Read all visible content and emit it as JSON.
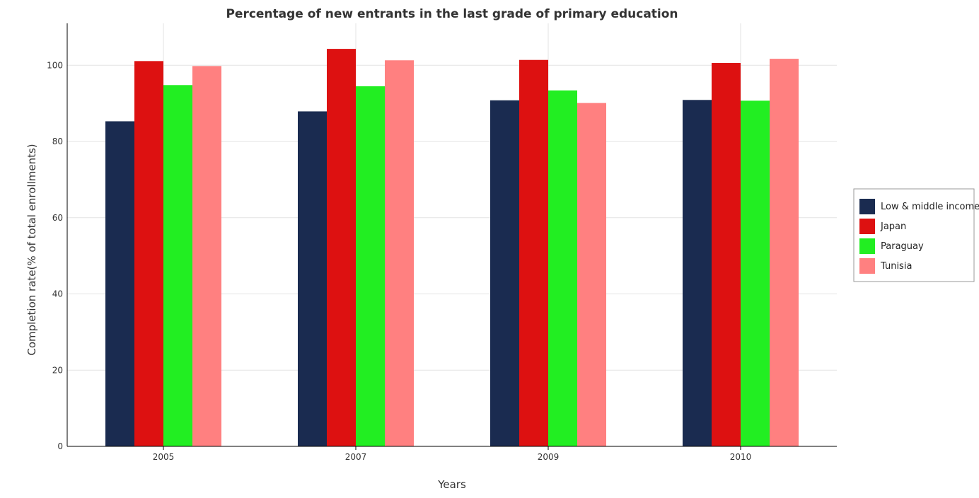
{
  "chart_data": {
    "type": "bar",
    "title": "Percentage of new entrants in the last grade of primary education",
    "xlabel": "Years",
    "ylabel": "Completion rate(% of total enrollments)",
    "categories": [
      "2005",
      "2007",
      "2009",
      "2010"
    ],
    "ylim": [
      0,
      111
    ],
    "yticks": [
      0,
      20,
      40,
      60,
      80,
      100
    ],
    "grid": true,
    "legend_position": "right",
    "series": [
      {
        "name": "Low & middle income",
        "color": "#1a2b50",
        "values": [
          85.3,
          87.9,
          90.8,
          90.9
        ]
      },
      {
        "name": "Japan",
        "color": "#dd1111",
        "values": [
          101.1,
          104.3,
          101.4,
          100.6
        ]
      },
      {
        "name": "Paraguay",
        "color": "#22ee22",
        "values": [
          94.8,
          94.5,
          93.4,
          90.7
        ]
      },
      {
        "name": "Tunisia",
        "color": "#ff8080",
        "values": [
          99.8,
          101.3,
          90.1,
          101.7
        ]
      }
    ]
  }
}
